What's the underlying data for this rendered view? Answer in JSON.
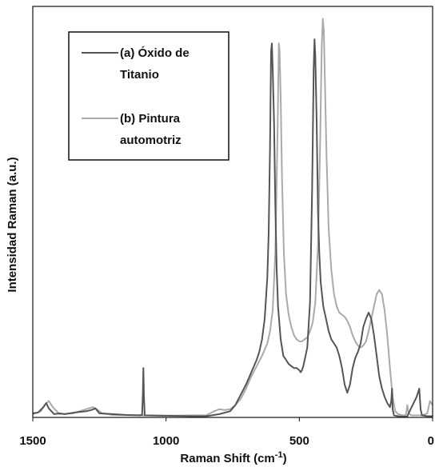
{
  "chart_data": {
    "type": "line",
    "title": "",
    "xlabel": "Raman Shift (cm",
    "xlabel_sup": "-1",
    "xlabel_suffix": ")",
    "ylabel": "Intensidad Raman  (a.u.)",
    "xlim": [
      1500,
      0
    ],
    "ylim": [
      0,
      100
    ],
    "x_reversed": true,
    "x_ticks": [
      "1500",
      "1000",
      "500",
      "0"
    ],
    "x_tick_values": [
      1500,
      1000,
      500,
      0
    ],
    "y_ticks_shown": false,
    "grid": false,
    "legend_position": "top-left",
    "series": [
      {
        "name_lines": [
          "(a) Óxido de",
          "Titanio"
        ],
        "color": "#555555",
        "points": [
          [
            1500,
            1.0
          ],
          [
            1480,
            1.2
          ],
          [
            1460,
            2.5
          ],
          [
            1450,
            3.5
          ],
          [
            1440,
            2.2
          ],
          [
            1420,
            0.8
          ],
          [
            1400,
            1.0
          ],
          [
            1380,
            0.8
          ],
          [
            1340,
            1.2
          ],
          [
            1300,
            1.5
          ],
          [
            1280,
            1.8
          ],
          [
            1265,
            2.2
          ],
          [
            1250,
            1.0
          ],
          [
            1200,
            0.8
          ],
          [
            1150,
            0.6
          ],
          [
            1100,
            0.5
          ],
          [
            1090,
            0.6
          ],
          [
            1087,
            6.0
          ],
          [
            1085,
            12.0
          ],
          [
            1083,
            5.0
          ],
          [
            1080,
            0.5
          ],
          [
            1000,
            0.4
          ],
          [
            900,
            0.3
          ],
          [
            850,
            0.3
          ],
          [
            800,
            0.8
          ],
          [
            760,
            1.5
          ],
          [
            740,
            3.0
          ],
          [
            720,
            5.5
          ],
          [
            700,
            8.0
          ],
          [
            680,
            11.0
          ],
          [
            660,
            14.0
          ],
          [
            650,
            16.0
          ],
          [
            640,
            19.0
          ],
          [
            630,
            24.0
          ],
          [
            620,
            34.0
          ],
          [
            615,
            45.0
          ],
          [
            610,
            66.0
          ],
          [
            606,
            89.0
          ],
          [
            603,
            91.0
          ],
          [
            600,
            85.0
          ],
          [
            595,
            72.0
          ],
          [
            590,
            52.0
          ],
          [
            585,
            36.0
          ],
          [
            580,
            27.0
          ],
          [
            570,
            19.0
          ],
          [
            560,
            15.0
          ],
          [
            550,
            14.0
          ],
          [
            540,
            13.0
          ],
          [
            530,
            12.5
          ],
          [
            520,
            12.0
          ],
          [
            510,
            12.0
          ],
          [
            500,
            11.5
          ],
          [
            495,
            11.0
          ],
          [
            490,
            11.5
          ],
          [
            485,
            12.5
          ],
          [
            480,
            14.0
          ],
          [
            470,
            17.0
          ],
          [
            460,
            28.0
          ],
          [
            452,
            55.0
          ],
          [
            446,
            85.0
          ],
          [
            443,
            92.0
          ],
          [
            440,
            88.0
          ],
          [
            435,
            72.0
          ],
          [
            430,
            50.0
          ],
          [
            425,
            40.0
          ],
          [
            420,
            33.0
          ],
          [
            410,
            27.0
          ],
          [
            400,
            24.0
          ],
          [
            390,
            21.0
          ],
          [
            380,
            19.0
          ],
          [
            370,
            18.0
          ],
          [
            360,
            17.0
          ],
          [
            350,
            15.0
          ],
          [
            340,
            12.0
          ],
          [
            330,
            8.0
          ],
          [
            320,
            6.0
          ],
          [
            310,
            8.0
          ],
          [
            300,
            12.0
          ],
          [
            290,
            14.5
          ],
          [
            280,
            16.0
          ],
          [
            270,
            18.0
          ],
          [
            260,
            22.0
          ],
          [
            250,
            24.0
          ],
          [
            240,
            25.5
          ],
          [
            230,
            24.0
          ],
          [
            220,
            20.0
          ],
          [
            210,
            15.0
          ],
          [
            200,
            10.0
          ],
          [
            190,
            7.0
          ],
          [
            180,
            5.0
          ],
          [
            170,
            3.5
          ],
          [
            160,
            2.5
          ],
          [
            155,
            4.0
          ],
          [
            152,
            7.0
          ],
          [
            150,
            2.0
          ],
          [
            145,
            0.5
          ],
          [
            130,
            0.3
          ],
          [
            110,
            0.2
          ],
          [
            95,
            0.2
          ],
          [
            90,
            1.0
          ],
          [
            60,
            5.0
          ],
          [
            50,
            7.0
          ],
          [
            45,
            2.0
          ],
          [
            40,
            0.5
          ],
          [
            20,
            0.3
          ],
          [
            0,
            0.3
          ]
        ]
      },
      {
        "name_lines": [
          "(b) Pintura",
          "automotriz"
        ],
        "color": "#aaaaaa",
        "points": [
          [
            1500,
            0.8
          ],
          [
            1470,
            1.5
          ],
          [
            1455,
            3.0
          ],
          [
            1440,
            4.0
          ],
          [
            1425,
            2.5
          ],
          [
            1400,
            0.8
          ],
          [
            1350,
            1.0
          ],
          [
            1300,
            2.0
          ],
          [
            1275,
            2.5
          ],
          [
            1260,
            2.0
          ],
          [
            1240,
            1.0
          ],
          [
            1200,
            0.6
          ],
          [
            1100,
            0.5
          ],
          [
            1000,
            0.4
          ],
          [
            900,
            0.5
          ],
          [
            850,
            0.5
          ],
          [
            820,
            1.5
          ],
          [
            800,
            2.0
          ],
          [
            780,
            1.8
          ],
          [
            760,
            2.0
          ],
          [
            740,
            3.0
          ],
          [
            720,
            4.5
          ],
          [
            700,
            7.0
          ],
          [
            680,
            10.0
          ],
          [
            660,
            12.5
          ],
          [
            640,
            15.0
          ],
          [
            620,
            18.0
          ],
          [
            610,
            21.0
          ],
          [
            600,
            26.0
          ],
          [
            590,
            40.0
          ],
          [
            582,
            68.0
          ],
          [
            577,
            91.0
          ],
          [
            574,
            89.0
          ],
          [
            570,
            78.0
          ],
          [
            565,
            58.0
          ],
          [
            558,
            40.0
          ],
          [
            550,
            30.0
          ],
          [
            540,
            25.0
          ],
          [
            530,
            22.0
          ],
          [
            520,
            20.0
          ],
          [
            510,
            19.0
          ],
          [
            500,
            18.5
          ],
          [
            490,
            18.5
          ],
          [
            480,
            19.0
          ],
          [
            470,
            19.5
          ],
          [
            460,
            21.0
          ],
          [
            450,
            23.0
          ],
          [
            440,
            28.0
          ],
          [
            430,
            42.0
          ],
          [
            422,
            66.0
          ],
          [
            416,
            90.0
          ],
          [
            412,
            97.0
          ],
          [
            408,
            94.0
          ],
          [
            404,
            82.0
          ],
          [
            398,
            64.0
          ],
          [
            390,
            46.0
          ],
          [
            380,
            36.0
          ],
          [
            370,
            30.0
          ],
          [
            360,
            27.0
          ],
          [
            350,
            25.5
          ],
          [
            340,
            25.0
          ],
          [
            330,
            24.5
          ],
          [
            320,
            23.5
          ],
          [
            310,
            22.0
          ],
          [
            300,
            20.0
          ],
          [
            290,
            18.5
          ],
          [
            280,
            17.5
          ],
          [
            270,
            17.0
          ],
          [
            260,
            17.5
          ],
          [
            250,
            18.5
          ],
          [
            240,
            21.0
          ],
          [
            230,
            24.0
          ],
          [
            220,
            27.0
          ],
          [
            210,
            30.0
          ],
          [
            200,
            31.0
          ],
          [
            190,
            30.0
          ],
          [
            180,
            26.0
          ],
          [
            170,
            20.0
          ],
          [
            160,
            12.0
          ],
          [
            150,
            5.0
          ],
          [
            140,
            1.5
          ],
          [
            130,
            0.8
          ],
          [
            110,
            0.5
          ],
          [
            100,
            0.6
          ],
          [
            95,
            3.0
          ],
          [
            90,
            1.0
          ],
          [
            80,
            0.5
          ],
          [
            60,
            0.5
          ],
          [
            40,
            0.5
          ],
          [
            20,
            1.0
          ],
          [
            10,
            4.0
          ],
          [
            5,
            3.5
          ],
          [
            0,
            3.0
          ]
        ]
      }
    ]
  }
}
